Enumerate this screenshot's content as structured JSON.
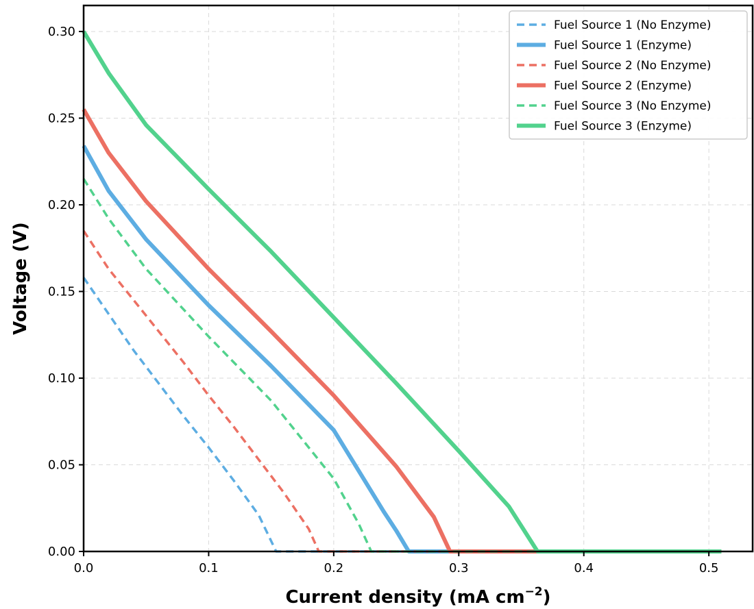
{
  "chart_data": {
    "type": "line",
    "title": "",
    "xlabel": "Current density (mA cm",
    "xlabel_sup": "−2",
    "xlabel_suffix": ")",
    "ylabel": "Voltage (V)",
    "xlim": [
      0,
      0.535
    ],
    "ylim": [
      0,
      0.315
    ],
    "x_ticks": [
      0.0,
      0.1,
      0.2,
      0.3,
      0.4,
      0.5
    ],
    "x_tick_labels": [
      "0.0",
      "0.1",
      "0.2",
      "0.3",
      "0.4",
      "0.5"
    ],
    "y_ticks": [
      0.0,
      0.05,
      0.1,
      0.15,
      0.2,
      0.25,
      0.3
    ],
    "y_tick_labels": [
      "0.00",
      "0.05",
      "0.10",
      "0.15",
      "0.20",
      "0.25",
      "0.30"
    ],
    "grid": true,
    "legend_position": "top-right",
    "series": [
      {
        "name": "Fuel Source 1 (No Enzyme)",
        "color": "#5dade2",
        "style": "dashed",
        "x": [
          0,
          0.02,
          0.04,
          0.06,
          0.08,
          0.1,
          0.12,
          0.14,
          0.154,
          0.2,
          0.3,
          0.4,
          0.51
        ],
        "y": [
          0.158,
          0.137,
          0.116,
          0.097,
          0.078,
          0.06,
          0.041,
          0.021,
          0.0,
          0.0,
          0.0,
          0.0,
          0.0
        ]
      },
      {
        "name": "Fuel Source 1 (Enzyme)",
        "color": "#5dade2",
        "style": "solid",
        "x": [
          0,
          0.02,
          0.05,
          0.1,
          0.15,
          0.2,
          0.24,
          0.25,
          0.26,
          0.3,
          0.4,
          0.51
        ],
        "y": [
          0.234,
          0.208,
          0.18,
          0.142,
          0.107,
          0.07,
          0.023,
          0.012,
          0.0,
          0.0,
          0.0,
          0.0
        ]
      },
      {
        "name": "Fuel Source 2 (No Enzyme)",
        "color": "#ec7063",
        "style": "dashed",
        "x": [
          0,
          0.02,
          0.04,
          0.06,
          0.08,
          0.1,
          0.12,
          0.14,
          0.16,
          0.18,
          0.188,
          0.25,
          0.35,
          0.51
        ],
        "y": [
          0.185,
          0.163,
          0.145,
          0.127,
          0.109,
          0.09,
          0.072,
          0.053,
          0.034,
          0.013,
          0.0,
          0.0,
          0.0,
          0.0
        ]
      },
      {
        "name": "Fuel Source 2 (Enzyme)",
        "color": "#ec7063",
        "style": "solid",
        "x": [
          0,
          0.02,
          0.05,
          0.1,
          0.15,
          0.2,
          0.25,
          0.28,
          0.293,
          0.35,
          0.45,
          0.51
        ],
        "y": [
          0.255,
          0.23,
          0.202,
          0.163,
          0.127,
          0.09,
          0.049,
          0.02,
          0.0,
          0.0,
          0.0,
          0.0
        ]
      },
      {
        "name": "Fuel Source 3 (No Enzyme)",
        "color": "#52d28d",
        "style": "dashed",
        "x": [
          0,
          0.02,
          0.05,
          0.1,
          0.15,
          0.2,
          0.22,
          0.23,
          0.3,
          0.4,
          0.51
        ],
        "y": [
          0.215,
          0.192,
          0.163,
          0.124,
          0.087,
          0.042,
          0.016,
          0.0,
          0.0,
          0.0,
          0.0
        ]
      },
      {
        "name": "Fuel Source 3 (Enzyme)",
        "color": "#52d28d",
        "style": "solid",
        "x": [
          0,
          0.02,
          0.05,
          0.1,
          0.15,
          0.2,
          0.25,
          0.3,
          0.34,
          0.363,
          0.4,
          0.45,
          0.51
        ],
        "y": [
          0.3,
          0.276,
          0.246,
          0.209,
          0.173,
          0.135,
          0.097,
          0.058,
          0.026,
          0.0,
          0.0,
          0.0,
          0.0
        ]
      }
    ]
  }
}
